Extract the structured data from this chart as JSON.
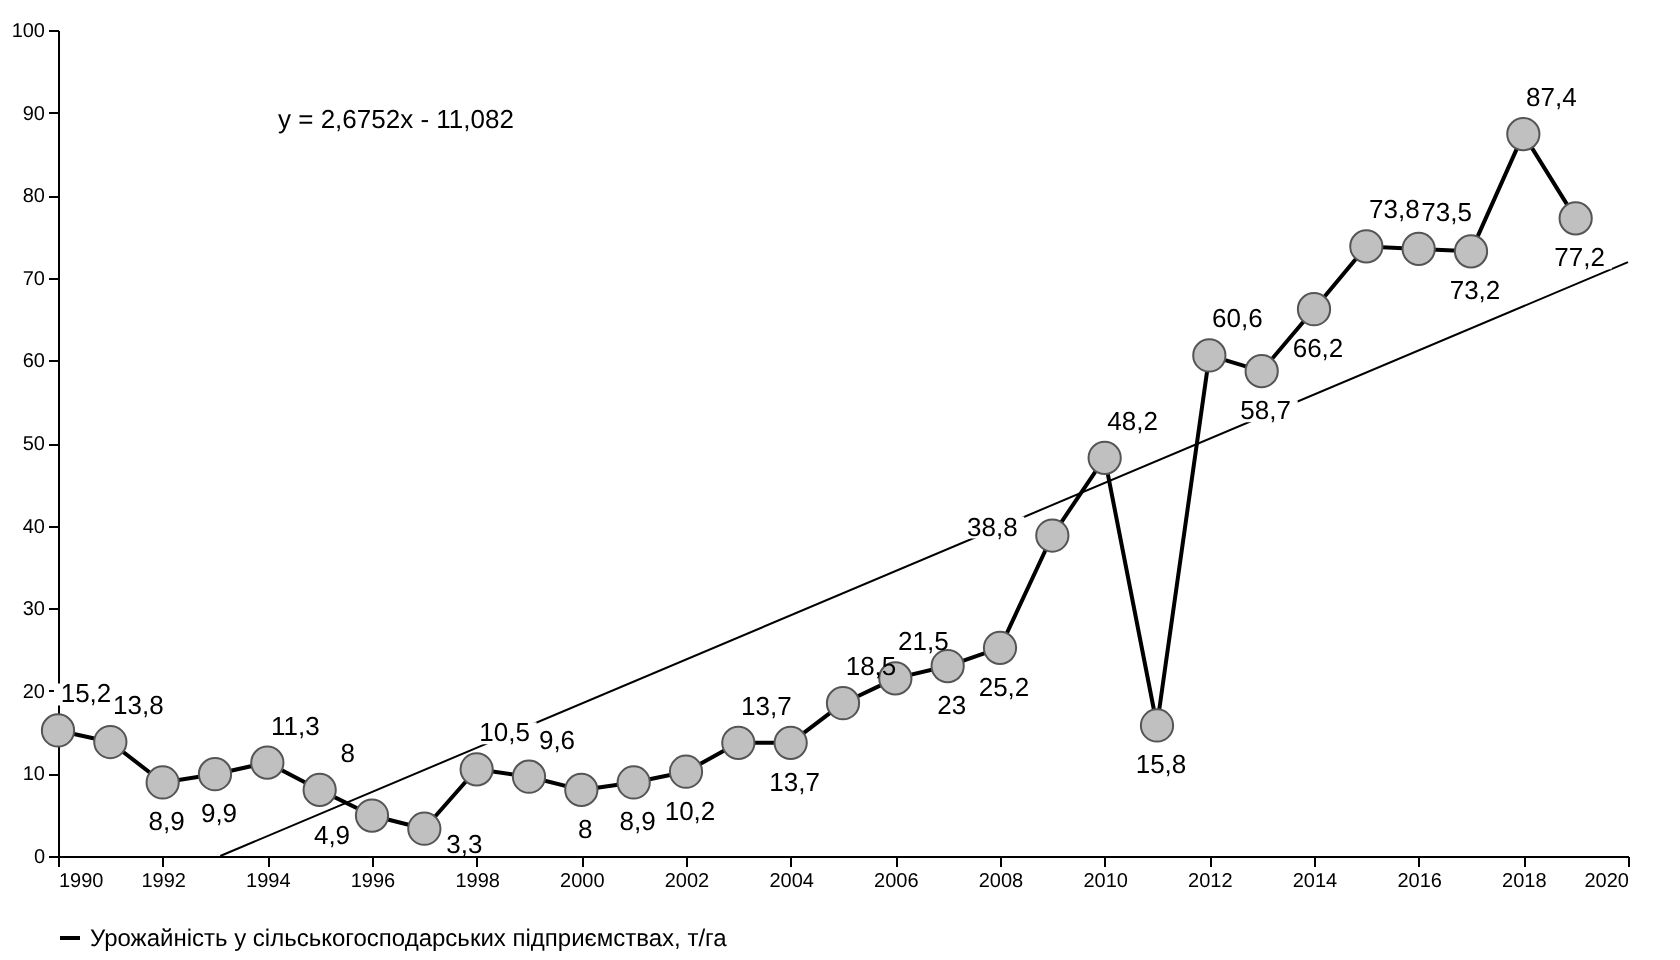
{
  "chart_data": {
    "type": "line",
    "x": [
      1990,
      1991,
      1992,
      1993,
      1994,
      1995,
      1996,
      1997,
      1998,
      1999,
      2000,
      2001,
      2002,
      2003,
      2004,
      2005,
      2006,
      2007,
      2008,
      2009,
      2010,
      2011,
      2012,
      2013,
      2014,
      2015,
      2016,
      2017,
      2018,
      2019
    ],
    "series": [
      {
        "name": "Урожайність у сільськогосподарських підприємствах, т/га",
        "color": "#c0c0c0",
        "marker": "circle",
        "values": [
          15.2,
          13.8,
          8.9,
          9.9,
          11.3,
          8,
          4.9,
          3.3,
          10.5,
          9.6,
          8,
          8.9,
          10.2,
          13.7,
          13.7,
          18.5,
          21.5,
          23,
          25.2,
          38.8,
          48.2,
          15.8,
          60.6,
          58.7,
          66.2,
          73.8,
          73.5,
          73.2,
          87.4,
          77.2
        ],
        "value_labels": [
          "15,2",
          "13,8",
          "8,9",
          "9,9",
          "11,3",
          "8",
          "4,9",
          "3,3",
          "10,5",
          "9,6",
          "8",
          "8,9",
          "10,2",
          "13,7",
          "13,7",
          "18,5",
          "21,5",
          "23",
          "25,2",
          "38,8",
          "48,2",
          "15,8",
          "60,6",
          "58,7",
          "66,2",
          "73,8",
          "73,5",
          "73,2",
          "87,4",
          "77,2"
        ]
      },
      {
        "type": "line",
        "color": "#000000",
        "marker": "none",
        "x": [
          1993.1,
          2020
        ],
        "values": [
          0,
          71.9
        ]
      }
    ],
    "xlim": [
      1990,
      2020
    ],
    "xticks": [
      1990,
      1992,
      1994,
      1996,
      1998,
      2000,
      2002,
      2004,
      2006,
      2008,
      2010,
      2012,
      2014,
      2016,
      2018,
      2020
    ],
    "ylim": [
      0,
      100
    ],
    "yticks": [
      0,
      10,
      20,
      30,
      40,
      50,
      60,
      70,
      80,
      90,
      100
    ],
    "annotations": [
      "y = 2,6752x - 11,082"
    ],
    "grid": false,
    "legend": "bottom"
  }
}
